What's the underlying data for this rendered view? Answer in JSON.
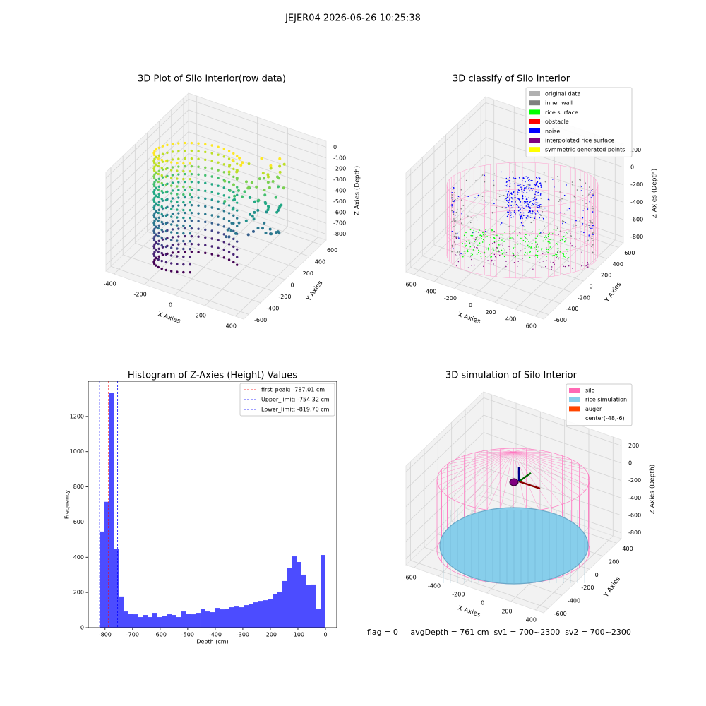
{
  "title": "JEJER04 2026-06-26 10:25:38",
  "footer": "flag = 0     avgDepth = 761 cm  sv1 = 700~2300  sv2 = 700~2300",
  "chart_data": [
    {
      "type": "scatter3d",
      "title": "3D Plot of Silo Interior(row data)",
      "xlabel": "X Axies",
      "ylabel": "Y Axies",
      "zlabel": "Z Axies (Depth)",
      "xticks": [
        -400,
        -200,
        0,
        200,
        400
      ],
      "yticks": [
        -600,
        -400,
        -200,
        0,
        200,
        400,
        600
      ],
      "zticks": [
        0,
        -100,
        -200,
        -300,
        -400,
        -500,
        -600,
        -700,
        -800
      ]
    },
    {
      "type": "scatter3d",
      "title": "3D classify of Silo Interior",
      "xlabel": "X Axies",
      "ylabel": "Y Axies",
      "zlabel": "Z Axies (Depth)",
      "xticks": [
        -600,
        -400,
        -200,
        0,
        200,
        400,
        600
      ],
      "yticks": [
        -600,
        -400,
        -200,
        0,
        200,
        400,
        600
      ],
      "zticks": [
        200,
        0,
        -200,
        -400,
        -600,
        -800
      ],
      "legend": [
        {
          "name": "original data",
          "color": "#b0b0b0"
        },
        {
          "name": "inner wall",
          "color": "#808080"
        },
        {
          "name": "rice surface",
          "color": "#00ff00"
        },
        {
          "name": "obstacle",
          "color": "#ff0000"
        },
        {
          "name": "noise",
          "color": "#0000ff"
        },
        {
          "name": "interpolated rice surface",
          "color": "#800080"
        },
        {
          "name": "symmetric generated points",
          "color": "#ffff00"
        }
      ]
    },
    {
      "type": "histogram",
      "title": "Histogram of Z-Axies (Height) Values",
      "xlabel": "Depth (cm)",
      "ylabel": "Frequency",
      "color": "#0000ff",
      "bins": [
        -820.0,
        -802.6,
        -785.1,
        -767.7,
        -750.2,
        -732.8,
        -715.3,
        -697.9,
        -680.4,
        -663.0,
        -645.5,
        -628.1,
        -610.6,
        -593.2,
        -575.7,
        -558.3,
        -540.9,
        -523.4,
        -506.0,
        -488.5,
        -471.1,
        -453.6,
        -436.2,
        -418.7,
        -401.3,
        -383.8,
        -366.4,
        -348.9,
        -331.5,
        -314.0,
        -296.6,
        -279.1,
        -261.7,
        -244.3,
        -226.8,
        -209.4,
        -191.9,
        -174.5,
        -157.0,
        -139.6,
        -122.1,
        -104.7,
        -87.2,
        -69.8,
        -52.3,
        -34.9,
        -17.4,
        0
      ],
      "values": [
        546,
        715,
        1333,
        446,
        177,
        92,
        80,
        76,
        60,
        72,
        60,
        84,
        60,
        68,
        76,
        72,
        60,
        92,
        80,
        76,
        84,
        108,
        92,
        88,
        112,
        104,
        108,
        116,
        120,
        116,
        128,
        136,
        144,
        152,
        156,
        164,
        192,
        204,
        265,
        337,
        405,
        373,
        301,
        241,
        245,
        108,
        413
      ],
      "xlim": [
        -861,
        41
      ],
      "ylim": [
        0,
        1400
      ],
      "xticks": [
        -800,
        -700,
        -600,
        -500,
        -400,
        -300,
        -200,
        -100,
        0
      ],
      "yticks": [
        0,
        200,
        400,
        600,
        800,
        1000,
        1200
      ],
      "vlines": [
        {
          "name": "first_peak: -787.01 cm",
          "value": -787.01,
          "color": "#ff0000"
        },
        {
          "name": "Upper_limit: -754.32 cm",
          "value": -754.32,
          "color": "#0000ff"
        },
        {
          "name": "Lower_limit: -819.70 cm",
          "value": -819.7,
          "color": "#0000ff"
        }
      ],
      "legend_position": "upper right"
    },
    {
      "type": "surface3d",
      "title": "3D simulation of Silo Interior",
      "xlabel": "X Axies",
      "ylabel": "Y Axies",
      "zlabel": "Z Axies (Depth)",
      "xticks": [
        -600,
        -400,
        -200,
        0,
        200,
        400
      ],
      "yticks": [
        -600,
        -400,
        -200,
        0,
        200,
        400
      ],
      "zticks": [
        200,
        0,
        -200,
        -400,
        -600,
        -800
      ],
      "legend": [
        {
          "name": "silo",
          "color": "#ff69b4"
        },
        {
          "name": "rice simulation",
          "color": "#87ceeb"
        },
        {
          "name": "auger",
          "color": "#ff4500"
        },
        {
          "name": "center(-48,-6)",
          "color": "#ffffff"
        }
      ]
    }
  ]
}
